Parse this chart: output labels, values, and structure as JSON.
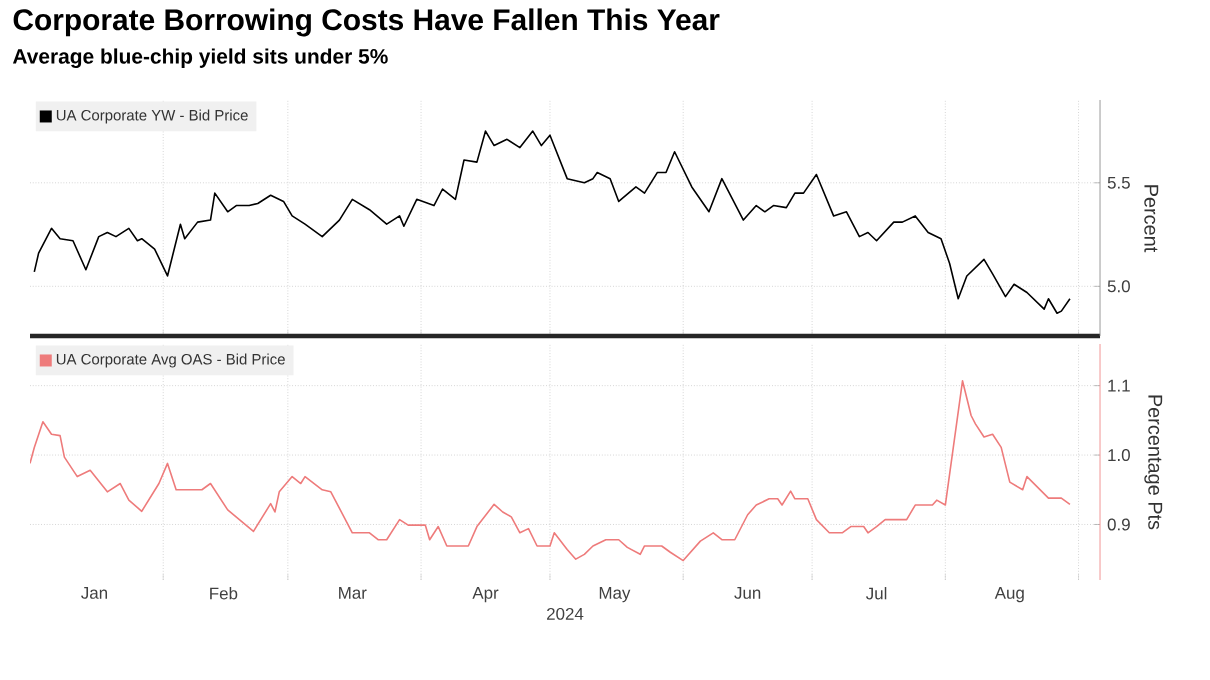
{
  "chart_data": [
    {
      "type": "line",
      "title": "Corporate Borrowing Costs Have Fallen This Year",
      "subtitle": "Average blue-chip yield sits under 5%",
      "ylabel": "Percent",
      "legend": "top left",
      "grid": true,
      "tick_labels": "y",
      "line_style": "solid",
      "x": [
        "2024-01-02",
        "2024-01-03",
        "2024-01-06",
        "2024-01-08",
        "2024-01-11",
        "2024-01-14",
        "2024-01-17",
        "2024-01-19",
        "2024-01-21",
        "2024-01-24",
        "2024-01-26",
        "2024-01-27",
        "2024-01-30",
        "2024-02-02",
        "2024-02-05",
        "2024-02-06",
        "2024-02-09",
        "2024-02-12",
        "2024-02-13",
        "2024-02-16",
        "2024-02-18",
        "2024-02-21",
        "2024-02-23",
        "2024-02-26",
        "2024-02-29",
        "2024-03-02",
        "2024-03-05",
        "2024-03-09",
        "2024-03-13",
        "2024-03-16",
        "2024-03-20",
        "2024-03-24",
        "2024-03-27",
        "2024-03-28",
        "2024-03-31",
        "2024-04-04",
        "2024-04-06",
        "2024-04-09",
        "2024-04-11",
        "2024-04-14",
        "2024-04-16",
        "2024-04-18",
        "2024-04-21",
        "2024-04-24",
        "2024-04-27",
        "2024-04-29",
        "2024-05-01",
        "2024-05-05",
        "2024-05-09",
        "2024-05-11",
        "2024-05-12",
        "2024-05-15",
        "2024-05-17",
        "2024-05-21",
        "2024-05-23",
        "2024-05-26",
        "2024-05-28",
        "2024-05-30",
        "2024-06-03",
        "2024-06-07",
        "2024-06-10",
        "2024-06-15",
        "2024-06-18",
        "2024-06-20",
        "2024-06-22",
        "2024-06-25",
        "2024-06-27",
        "2024-06-29",
        "2024-07-02",
        "2024-07-06",
        "2024-07-09",
        "2024-07-12",
        "2024-07-14",
        "2024-07-16",
        "2024-07-20",
        "2024-07-22",
        "2024-07-25",
        "2024-07-28",
        "2024-07-31",
        "2024-08-02",
        "2024-08-04",
        "2024-08-06",
        "2024-08-10",
        "2024-08-12",
        "2024-08-15",
        "2024-08-17",
        "2024-08-20",
        "2024-08-24",
        "2024-08-25",
        "2024-08-27",
        "2024-08-28",
        "2024-08-30"
      ],
      "series": [
        {
          "name": "UA Corporate YW - Bid Price",
          "color": "#000000",
          "values": [
            5.07,
            5.16,
            5.28,
            5.23,
            5.22,
            5.08,
            5.24,
            5.26,
            5.24,
            5.28,
            5.22,
            5.23,
            5.18,
            5.05,
            5.3,
            5.23,
            5.31,
            5.32,
            5.45,
            5.36,
            5.39,
            5.39,
            5.4,
            5.44,
            5.41,
            5.34,
            5.3,
            5.24,
            5.32,
            5.42,
            5.37,
            5.3,
            5.34,
            5.29,
            5.42,
            5.39,
            5.47,
            5.42,
            5.61,
            5.6,
            5.75,
            5.68,
            5.71,
            5.67,
            5.75,
            5.68,
            5.73,
            5.52,
            5.5,
            5.52,
            5.55,
            5.52,
            5.41,
            5.48,
            5.45,
            5.55,
            5.55,
            5.65,
            5.48,
            5.36,
            5.52,
            5.32,
            5.39,
            5.36,
            5.39,
            5.38,
            5.45,
            5.45,
            5.54,
            5.34,
            5.36,
            5.24,
            5.26,
            5.22,
            5.31,
            5.31,
            5.34,
            5.26,
            5.23,
            5.11,
            4.94,
            5.05,
            5.13,
            5.06,
            4.95,
            5.01,
            4.97,
            4.89,
            4.94,
            4.87,
            4.88,
            4.94
          ]
        }
      ],
      "xlim": [
        "2024-01-01",
        "2024-09-06"
      ],
      "ylim": [
        4.76,
        5.9
      ],
      "xticks": [
        {
          "value": "2024-02-01",
          "label": null
        },
        {
          "value": "2024-03-01",
          "label": null
        },
        {
          "value": "2024-04-01",
          "label": null
        },
        {
          "value": "2024-05-01",
          "label": null
        },
        {
          "value": "2024-06-01",
          "label": null
        },
        {
          "value": "2024-07-01",
          "label": null
        },
        {
          "value": "2024-08-01",
          "label": null
        },
        {
          "value": "2024-09-01",
          "label": null
        }
      ],
      "yticks": [
        {
          "value": 5,
          "label": "5.0"
        },
        5.5
      ]
    },
    {
      "type": "line",
      "xlabel": "2024",
      "ylabel": "Percentage Pts",
      "legend": "top left",
      "grid": true,
      "line_style": "solid",
      "x": [
        "2024-01-01",
        "2024-01-02",
        "2024-01-04",
        "2024-01-06",
        "2024-01-08",
        "2024-01-09",
        "2024-01-12",
        "2024-01-15",
        "2024-01-19",
        "2024-01-22",
        "2024-01-24",
        "2024-01-27",
        "2024-01-31",
        "2024-02-02",
        "2024-02-04",
        "2024-02-10",
        "2024-02-12",
        "2024-02-16",
        "2024-02-22",
        "2024-02-26",
        "2024-02-27",
        "2024-02-28",
        "2024-03-02",
        "2024-03-04",
        "2024-03-05",
        "2024-03-09",
        "2024-03-11",
        "2024-03-16",
        "2024-03-20",
        "2024-03-22",
        "2024-03-24",
        "2024-03-27",
        "2024-03-29",
        "2024-04-02",
        "2024-04-03",
        "2024-04-05",
        "2024-04-07",
        "2024-04-12",
        "2024-04-14",
        "2024-04-18",
        "2024-04-20",
        "2024-04-22",
        "2024-04-24",
        "2024-04-26",
        "2024-04-28",
        "2024-05-01",
        "2024-05-02",
        "2024-05-05",
        "2024-05-07",
        "2024-05-09",
        "2024-05-11",
        "2024-05-14",
        "2024-05-17",
        "2024-05-19",
        "2024-05-22",
        "2024-05-23",
        "2024-05-27",
        "2024-05-29",
        "2024-06-01",
        "2024-06-05",
        "2024-06-08",
        "2024-06-10",
        "2024-06-13",
        "2024-06-16",
        "2024-06-18",
        "2024-06-21",
        "2024-06-23",
        "2024-06-24",
        "2024-06-26",
        "2024-06-27",
        "2024-06-30",
        "2024-07-02",
        "2024-07-05",
        "2024-07-08",
        "2024-07-10",
        "2024-07-13",
        "2024-07-14",
        "2024-07-16",
        "2024-07-18",
        "2024-07-23",
        "2024-07-25",
        "2024-07-29",
        "2024-07-30",
        "2024-08-01",
        "2024-08-05",
        "2024-08-07",
        "2024-08-08",
        "2024-08-10",
        "2024-08-12",
        "2024-08-14",
        "2024-08-16",
        "2024-08-19",
        "2024-08-20",
        "2024-08-25",
        "2024-08-28",
        "2024-08-30"
      ],
      "series": [
        {
          "name": "UA Corporate Avg OAS - Bid Price",
          "color": "#ee7b7b",
          "values": [
            0.988,
            1.011,
            1.048,
            1.03,
            1.028,
            0.997,
            0.969,
            0.978,
            0.947,
            0.959,
            0.935,
            0.919,
            0.959,
            0.988,
            0.95,
            0.95,
            0.959,
            0.921,
            0.89,
            0.93,
            0.918,
            0.947,
            0.969,
            0.959,
            0.969,
            0.95,
            0.947,
            0.888,
            0.888,
            0.878,
            0.878,
            0.907,
            0.899,
            0.899,
            0.878,
            0.897,
            0.869,
            0.869,
            0.897,
            0.929,
            0.918,
            0.911,
            0.888,
            0.894,
            0.869,
            0.869,
            0.888,
            0.864,
            0.85,
            0.857,
            0.869,
            0.878,
            0.878,
            0.867,
            0.857,
            0.869,
            0.869,
            0.86,
            0.848,
            0.876,
            0.888,
            0.878,
            0.878,
            0.914,
            0.928,
            0.937,
            0.937,
            0.928,
            0.948,
            0.937,
            0.937,
            0.907,
            0.888,
            0.888,
            0.897,
            0.897,
            0.888,
            0.897,
            0.907,
            0.907,
            0.928,
            0.928,
            0.935,
            0.928,
            1.107,
            1.057,
            1.045,
            1.026,
            1.03,
            1.011,
            0.961,
            0.95,
            0.969,
            0.938,
            0.938,
            0.929
          ]
        }
      ],
      "xlim": [
        "2024-01-01",
        "2024-09-06"
      ],
      "ylim": [
        0.82,
        1.16
      ],
      "xticks": [
        {
          "value": "2024-01-16",
          "label": "Jan"
        },
        {
          "value": "2024-02-01",
          "label": null
        },
        {
          "value": "2024-02-15",
          "label": "Feb"
        },
        {
          "value": "2024-03-01",
          "label": null
        },
        {
          "value": "2024-03-16",
          "label": "Mar"
        },
        {
          "value": "2024-04-01",
          "label": null
        },
        {
          "value": "2024-04-16",
          "label": "Apr"
        },
        {
          "value": "2024-05-01",
          "label": null
        },
        {
          "value": "2024-05-16",
          "label": "May"
        },
        {
          "value": "2024-06-01",
          "label": null
        },
        {
          "value": "2024-06-16",
          "label": "Jun"
        },
        {
          "value": "2024-07-01",
          "label": null
        },
        {
          "value": "2024-07-16",
          "label": "Jul"
        },
        {
          "value": "2024-08-01",
          "label": null
        },
        {
          "value": "2024-08-16",
          "label": "Aug"
        },
        {
          "value": "2024-09-01",
          "label": null
        }
      ],
      "yticks": [
        0.9,
        {
          "value": 1,
          "label": "1.0"
        },
        1.1
      ]
    }
  ]
}
